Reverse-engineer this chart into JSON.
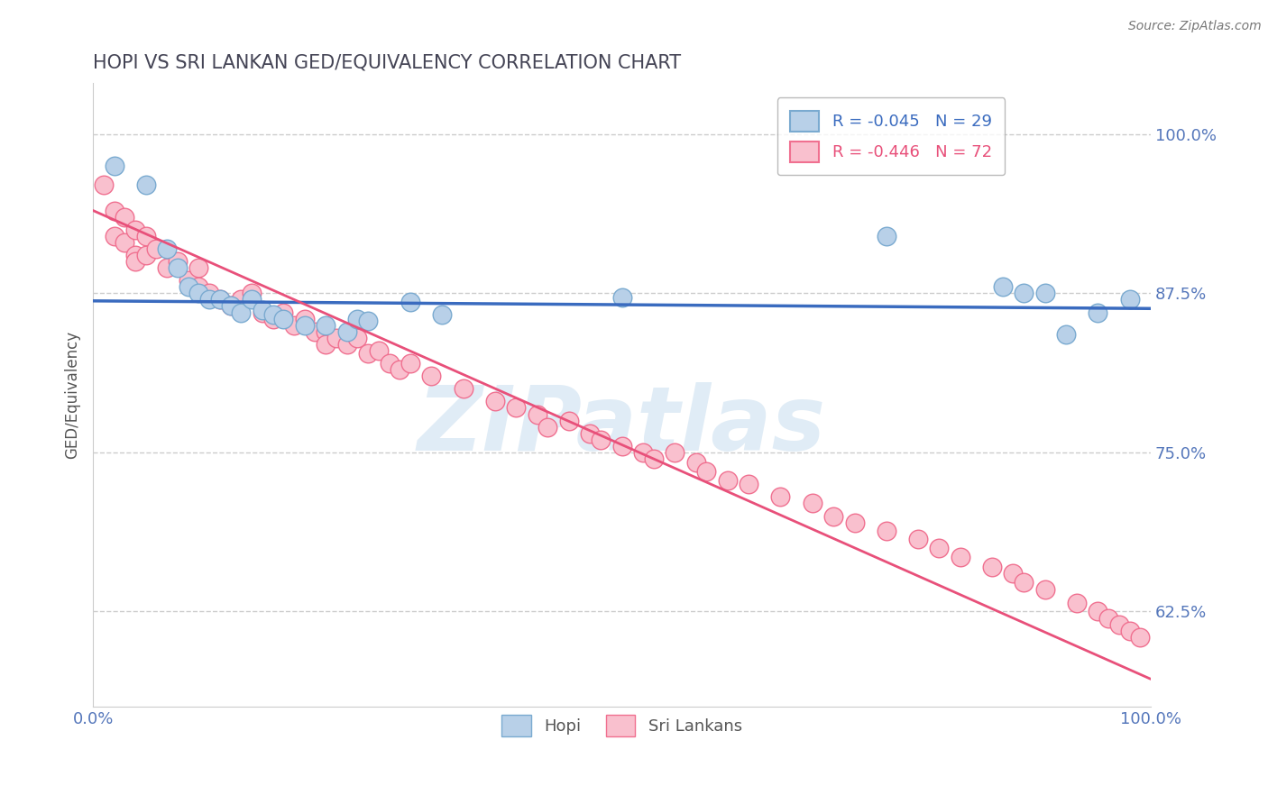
{
  "title": "HOPI VS SRI LANKAN GED/EQUIVALENCY CORRELATION CHART",
  "source": "Source: ZipAtlas.com",
  "ylabel": "GED/Equivalency",
  "xlim": [
    0.0,
    1.0
  ],
  "ylim": [
    0.55,
    1.04
  ],
  "yticks": [
    0.625,
    0.75,
    0.875,
    1.0
  ],
  "ytick_labels": [
    "62.5%",
    "75.0%",
    "87.5%",
    "100.0%"
  ],
  "xticks": [
    0.0,
    1.0
  ],
  "xtick_labels": [
    "0.0%",
    "100.0%"
  ],
  "legend_entry1": "R = -0.045   N = 29",
  "legend_entry2": "R = -0.446   N = 72",
  "hopi_color": "#b8d0e8",
  "hopi_edge_color": "#7aaad0",
  "sri_color": "#f9c0ce",
  "sri_edge_color": "#f07090",
  "trend_hopi_color": "#3a6bbf",
  "trend_sri_color": "#e8507a",
  "watermark_text": "ZIPatlas",
  "background_color": "#ffffff",
  "grid_color": "#cccccc",
  "hopi_x": [
    0.02,
    0.05,
    0.07,
    0.08,
    0.09,
    0.1,
    0.11,
    0.12,
    0.13,
    0.14,
    0.15,
    0.16,
    0.17,
    0.18,
    0.2,
    0.22,
    0.24,
    0.25,
    0.26,
    0.3,
    0.33,
    0.5,
    0.75,
    0.86,
    0.88,
    0.9,
    0.92,
    0.95,
    0.98
  ],
  "hopi_y": [
    0.975,
    0.96,
    0.91,
    0.895,
    0.88,
    0.875,
    0.87,
    0.87,
    0.865,
    0.86,
    0.87,
    0.862,
    0.858,
    0.855,
    0.85,
    0.85,
    0.845,
    0.855,
    0.853,
    0.868,
    0.858,
    0.872,
    0.92,
    0.88,
    0.875,
    0.875,
    0.843,
    0.86,
    0.87
  ],
  "sri_x": [
    0.01,
    0.02,
    0.02,
    0.03,
    0.03,
    0.04,
    0.04,
    0.04,
    0.05,
    0.05,
    0.06,
    0.07,
    0.08,
    0.09,
    0.1,
    0.1,
    0.11,
    0.12,
    0.13,
    0.14,
    0.15,
    0.16,
    0.17,
    0.18,
    0.19,
    0.2,
    0.21,
    0.22,
    0.22,
    0.23,
    0.24,
    0.25,
    0.26,
    0.27,
    0.28,
    0.29,
    0.3,
    0.32,
    0.35,
    0.38,
    0.4,
    0.42,
    0.43,
    0.45,
    0.47,
    0.48,
    0.5,
    0.52,
    0.53,
    0.55,
    0.57,
    0.58,
    0.6,
    0.62,
    0.65,
    0.68,
    0.7,
    0.72,
    0.75,
    0.78,
    0.8,
    0.82,
    0.85,
    0.87,
    0.88,
    0.9,
    0.93,
    0.95,
    0.96,
    0.97,
    0.98,
    0.99
  ],
  "sri_y": [
    0.96,
    0.94,
    0.92,
    0.935,
    0.915,
    0.925,
    0.905,
    0.9,
    0.92,
    0.905,
    0.91,
    0.895,
    0.9,
    0.885,
    0.895,
    0.88,
    0.875,
    0.87,
    0.865,
    0.87,
    0.875,
    0.86,
    0.855,
    0.86,
    0.85,
    0.855,
    0.845,
    0.845,
    0.835,
    0.84,
    0.835,
    0.84,
    0.828,
    0.83,
    0.82,
    0.815,
    0.82,
    0.81,
    0.8,
    0.79,
    0.785,
    0.78,
    0.77,
    0.775,
    0.765,
    0.76,
    0.755,
    0.75,
    0.745,
    0.75,
    0.742,
    0.735,
    0.728,
    0.725,
    0.715,
    0.71,
    0.7,
    0.695,
    0.688,
    0.682,
    0.675,
    0.668,
    0.66,
    0.655,
    0.648,
    0.642,
    0.632,
    0.625,
    0.62,
    0.615,
    0.61,
    0.605
  ],
  "hopi_trendline_x": [
    0.0,
    1.0
  ],
  "hopi_trendline_y": [
    0.869,
    0.863
  ],
  "sri_trendline_x": [
    0.0,
    1.0
  ],
  "sri_trendline_y": [
    0.94,
    0.572
  ]
}
